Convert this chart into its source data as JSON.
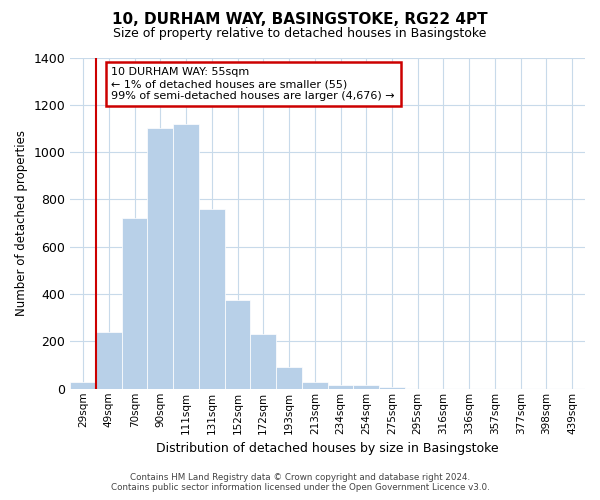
{
  "title": "10, DURHAM WAY, BASINGSTOKE, RG22 4PT",
  "subtitle": "Size of property relative to detached houses in Basingstoke",
  "xlabel": "Distribution of detached houses by size in Basingstoke",
  "ylabel": "Number of detached properties",
  "bar_labels": [
    "29sqm",
    "49sqm",
    "70sqm",
    "90sqm",
    "111sqm",
    "131sqm",
    "152sqm",
    "172sqm",
    "193sqm",
    "213sqm",
    "234sqm",
    "254sqm",
    "275sqm",
    "295sqm",
    "316sqm",
    "336sqm",
    "357sqm",
    "377sqm",
    "398sqm",
    "439sqm"
  ],
  "bar_values": [
    30,
    240,
    720,
    1100,
    1120,
    760,
    375,
    230,
    90,
    30,
    18,
    15,
    8,
    0,
    0,
    0,
    0,
    0,
    0,
    0
  ],
  "bar_color": "#b8d0e8",
  "bar_edge_color": "#b8d0e8",
  "ylim": [
    0,
    1400
  ],
  "yticks": [
    0,
    200,
    400,
    600,
    800,
    1000,
    1200,
    1400
  ],
  "redline_bar_index": 1,
  "annotation_title": "10 DURHAM WAY: 55sqm",
  "annotation_line1": "← 1% of detached houses are smaller (55)",
  "annotation_line2": "99% of semi-detached houses are larger (4,676) →",
  "annotation_box_color": "#ffffff",
  "annotation_box_edge": "#cc0000",
  "redline_color": "#cc0000",
  "footer1": "Contains HM Land Registry data © Crown copyright and database right 2024.",
  "footer2": "Contains public sector information licensed under the Open Government Licence v3.0.",
  "background_color": "#ffffff",
  "grid_color": "#c8daea"
}
